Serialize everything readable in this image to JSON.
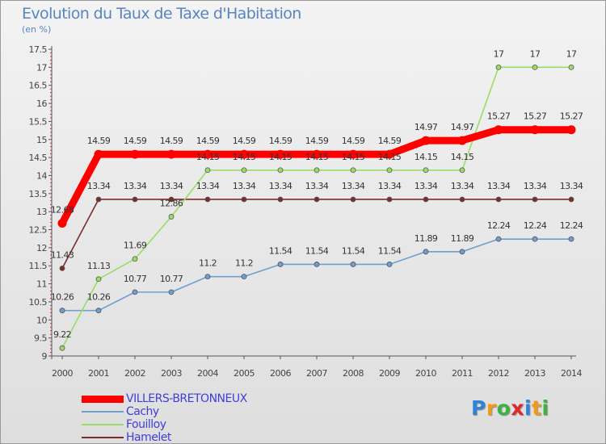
{
  "chart_data": {
    "type": "line",
    "title": "Evolution du Taux de Taxe d'Habitation",
    "subtitle": "(en %)",
    "x": [
      "2000",
      "2001",
      "2002",
      "2003",
      "2004",
      "2005",
      "2006",
      "2007",
      "2008",
      "2009",
      "2010",
      "2011",
      "2012",
      "2013",
      "2014"
    ],
    "ylim": [
      9,
      17.5
    ],
    "yticks": [
      "9",
      "9.5",
      "10",
      "10.5",
      "11",
      "11.5",
      "12",
      "12.5",
      "13",
      "13.5",
      "14",
      "14.5",
      "15",
      "15.5",
      "16",
      "16.5",
      "17",
      "17.5"
    ],
    "grid": false,
    "legend_position": "bottom-left",
    "series": [
      {
        "name": "VILLERS-BRETONNEUX",
        "color": "#ff0000",
        "values": [
          12.68,
          14.59,
          14.59,
          14.59,
          14.59,
          14.59,
          14.59,
          14.59,
          14.59,
          14.59,
          14.97,
          14.97,
          15.27,
          15.27,
          15.27
        ],
        "labels": [
          "12.68",
          "14.59",
          "14.59",
          "14.59",
          "14.59",
          "14.59",
          "14.59",
          "14.59",
          "14.59",
          "14.59",
          "14.97",
          "14.97",
          "15.27",
          "15.27",
          "15.27"
        ]
      },
      {
        "name": "Cachy",
        "color": "#6f9fd0",
        "values": [
          10.26,
          10.26,
          10.77,
          10.77,
          11.2,
          11.2,
          11.54,
          11.54,
          11.54,
          11.54,
          11.89,
          11.89,
          12.24,
          12.24,
          12.24
        ],
        "labels": [
          "10.26",
          "10.26",
          "10.77",
          "10.77",
          "11.2",
          "11.2",
          "11.54",
          "11.54",
          "11.54",
          "11.54",
          "11.89",
          "11.89",
          "12.24",
          "12.24",
          "12.24"
        ]
      },
      {
        "name": "Fouilloy",
        "color": "#99dd66",
        "values": [
          9.22,
          11.13,
          11.69,
          12.86,
          14.15,
          14.15,
          14.15,
          14.15,
          14.15,
          14.15,
          14.15,
          14.15,
          17,
          17,
          17
        ],
        "labels": [
          "9.22",
          "11.13",
          "11.69",
          "12.86",
          "14.15",
          "14.15",
          "14.15",
          "14.15",
          "14.15",
          "14.15",
          "14.15",
          "14.15",
          "17",
          "17",
          "17"
        ]
      },
      {
        "name": "Hamelet",
        "color": "#7a2d2d",
        "values": [
          11.43,
          13.34,
          13.34,
          13.34,
          13.34,
          13.34,
          13.34,
          13.34,
          13.34,
          13.34,
          13.34,
          13.34,
          13.34,
          13.34,
          13.34
        ],
        "labels": [
          "11.43",
          "13.34",
          "13.34",
          "13.34",
          "13.34",
          "13.34",
          "13.34",
          "13.34",
          "13.34",
          "13.34",
          "13.34",
          "13.34",
          "13.34",
          "13.34",
          "13.34"
        ]
      }
    ]
  },
  "logo": {
    "text": "Proxiti",
    "letters": [
      "P",
      "r",
      "o",
      "x",
      "i",
      "t",
      "i"
    ],
    "colors": [
      "#2f83d6",
      "#f29a18",
      "#3db23d",
      "#e0272b",
      "#2f83d6",
      "#f29a18",
      "#3db23d"
    ]
  }
}
